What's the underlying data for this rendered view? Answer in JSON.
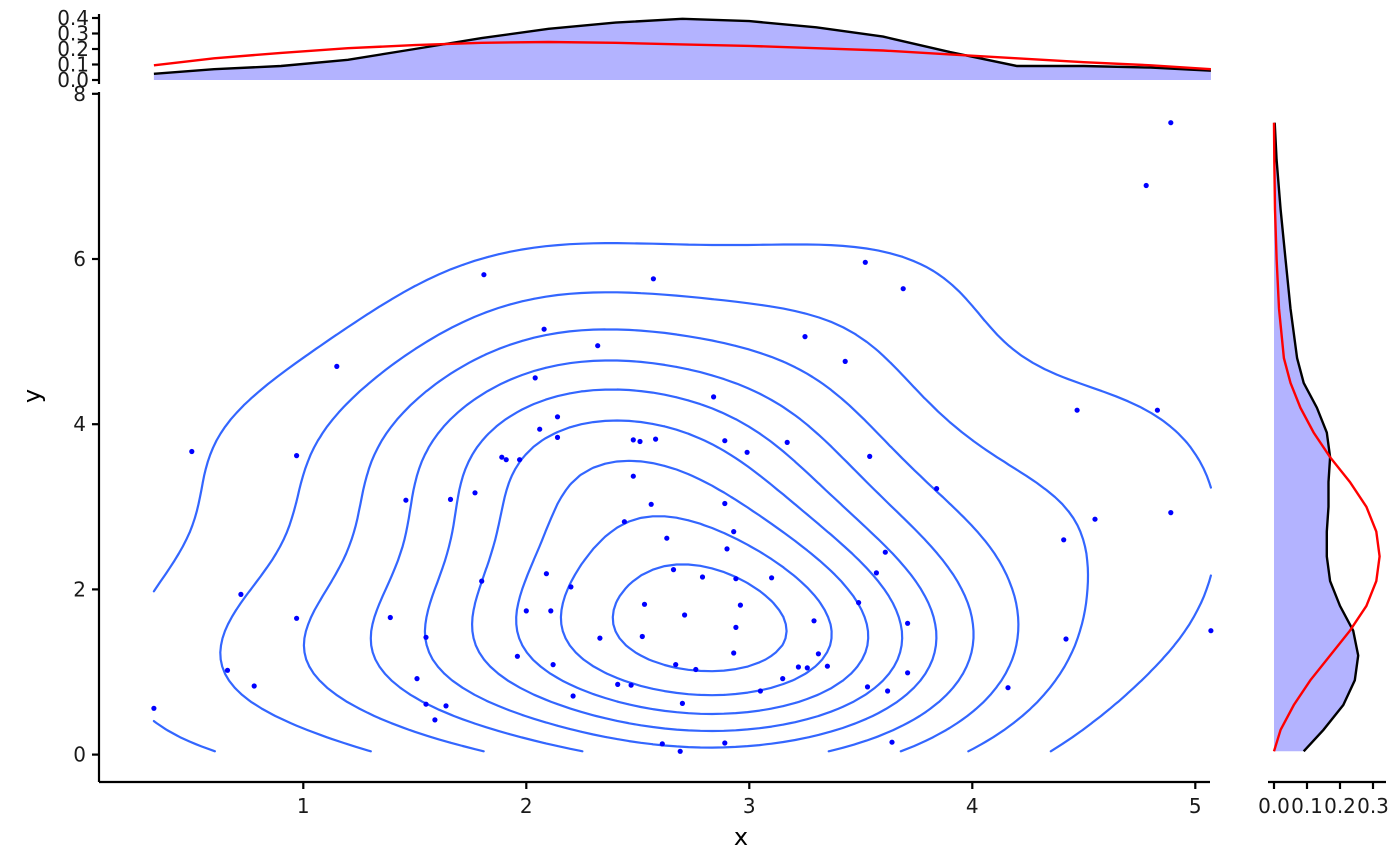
{
  "chart_data": [
    {
      "type": "scatter",
      "panel": "main",
      "title": "",
      "xlabel": "x",
      "ylabel": "y",
      "xlim": [
        0.0,
        5.2
      ],
      "ylim": [
        -0.35,
        8.0
      ],
      "xticks": [
        1,
        2,
        3,
        4,
        5
      ],
      "yticks": [
        0,
        2,
        4,
        6,
        8
      ],
      "grid": false,
      "legend": "none",
      "colors": {
        "points": "#0000ff",
        "contours": "#3366ff"
      },
      "points": [
        [
          0.33,
          0.56
        ],
        [
          0.5,
          3.67
        ],
        [
          0.66,
          1.02
        ],
        [
          0.72,
          1.94
        ],
        [
          0.78,
          0.83
        ],
        [
          0.97,
          3.62
        ],
        [
          0.97,
          1.65
        ],
        [
          1.15,
          4.7
        ],
        [
          1.39,
          1.66
        ],
        [
          1.46,
          3.08
        ],
        [
          1.51,
          0.92
        ],
        [
          1.55,
          1.42
        ],
        [
          1.55,
          0.61
        ],
        [
          1.59,
          0.42
        ],
        [
          1.64,
          0.59
        ],
        [
          1.66,
          3.09
        ],
        [
          1.77,
          3.17
        ],
        [
          1.8,
          2.1
        ],
        [
          1.81,
          5.81
        ],
        [
          1.89,
          3.6
        ],
        [
          1.91,
          3.57
        ],
        [
          1.96,
          1.19
        ],
        [
          1.97,
          3.57
        ],
        [
          2.0,
          1.74
        ],
        [
          2.04,
          4.56
        ],
        [
          2.06,
          3.94
        ],
        [
          2.08,
          5.15
        ],
        [
          2.09,
          2.19
        ],
        [
          2.11,
          1.74
        ],
        [
          2.12,
          1.09
        ],
        [
          2.14,
          4.09
        ],
        [
          2.14,
          3.84
        ],
        [
          2.2,
          2.03
        ],
        [
          2.21,
          0.71
        ],
        [
          2.32,
          4.95
        ],
        [
          2.33,
          1.41
        ],
        [
          2.41,
          0.85
        ],
        [
          2.44,
          2.82
        ],
        [
          2.47,
          0.84
        ],
        [
          2.48,
          3.37
        ],
        [
          2.48,
          3.81
        ],
        [
          2.51,
          3.79
        ],
        [
          2.52,
          1.43
        ],
        [
          2.53,
          1.82
        ],
        [
          2.56,
          3.03
        ],
        [
          2.57,
          5.76
        ],
        [
          2.58,
          3.82
        ],
        [
          2.61,
          0.13
        ],
        [
          2.63,
          2.62
        ],
        [
          2.66,
          2.24
        ],
        [
          2.67,
          1.09
        ],
        [
          2.69,
          0.04
        ],
        [
          2.7,
          0.62
        ],
        [
          2.71,
          1.69
        ],
        [
          2.76,
          1.03
        ],
        [
          2.79,
          2.15
        ],
        [
          2.84,
          4.33
        ],
        [
          2.89,
          3.8
        ],
        [
          2.89,
          3.04
        ],
        [
          2.89,
          0.14
        ],
        [
          2.9,
          2.49
        ],
        [
          2.93,
          2.7
        ],
        [
          2.93,
          1.23
        ],
        [
          2.94,
          2.13
        ],
        [
          2.94,
          1.54
        ],
        [
          2.96,
          1.81
        ],
        [
          2.99,
          3.66
        ],
        [
          3.05,
          0.77
        ],
        [
          3.1,
          2.14
        ],
        [
          3.15,
          0.92
        ],
        [
          3.17,
          3.78
        ],
        [
          3.22,
          1.06
        ],
        [
          3.25,
          5.06
        ],
        [
          3.26,
          1.05
        ],
        [
          3.29,
          1.62
        ],
        [
          3.31,
          1.22
        ],
        [
          3.35,
          1.07
        ],
        [
          3.43,
          4.76
        ],
        [
          3.49,
          1.84
        ],
        [
          3.52,
          5.96
        ],
        [
          3.53,
          0.82
        ],
        [
          3.54,
          3.61
        ],
        [
          3.57,
          2.2
        ],
        [
          3.61,
          2.45
        ],
        [
          3.62,
          0.77
        ],
        [
          3.64,
          0.15
        ],
        [
          3.69,
          5.64
        ],
        [
          3.71,
          1.59
        ],
        [
          3.71,
          0.99
        ],
        [
          3.84,
          3.22
        ],
        [
          4.16,
          0.81
        ],
        [
          4.41,
          2.6
        ],
        [
          4.42,
          1.4
        ],
        [
          4.47,
          4.17
        ],
        [
          4.55,
          2.85
        ],
        [
          4.78,
          6.89
        ],
        [
          4.83,
          4.17
        ],
        [
          4.89,
          7.65
        ],
        [
          4.89,
          2.93
        ],
        [
          5.07,
          1.5
        ]
      ]
    },
    {
      "type": "area",
      "panel": "top-marginal",
      "title": "",
      "ylim": [
        0.0,
        0.4
      ],
      "yticks": [
        "0.4",
        "0.3",
        "0.2",
        "0.1",
        "0.0"
      ],
      "colors": {
        "fill": "#b3b3ff",
        "density": "#000000",
        "normal_fit": "#ff0000"
      },
      "x": [
        0.33,
        0.6,
        0.9,
        1.2,
        1.5,
        1.8,
        2.1,
        2.4,
        2.7,
        3.0,
        3.3,
        3.6,
        3.9,
        4.2,
        4.5,
        4.8,
        5.07
      ],
      "series": [
        {
          "values": [
            0.04,
            0.07,
            0.09,
            0.13,
            0.2,
            0.27,
            0.33,
            0.37,
            0.395,
            0.38,
            0.34,
            0.28,
            0.18,
            0.09,
            0.09,
            0.08,
            0.06
          ]
        },
        {
          "values": [
            0.095,
            0.14,
            0.175,
            0.205,
            0.225,
            0.24,
            0.245,
            0.24,
            0.23,
            0.22,
            0.205,
            0.19,
            0.165,
            0.14,
            0.115,
            0.095,
            0.07
          ]
        }
      ]
    },
    {
      "type": "area",
      "panel": "right-marginal",
      "title": "",
      "xlim": [
        0.0,
        0.35
      ],
      "xticks": [
        "0.0",
        "0.1",
        "0.2",
        "0.3"
      ],
      "colors": {
        "fill": "#b3b3ff",
        "density": "#000000",
        "normal_fit": "#ff0000"
      },
      "y": [
        0.04,
        0.3,
        0.6,
        0.9,
        1.2,
        1.5,
        1.8,
        2.1,
        2.4,
        2.7,
        3.0,
        3.3,
        3.6,
        3.9,
        4.2,
        4.5,
        4.8,
        5.4,
        6.0,
        6.6,
        7.2,
        7.65
      ],
      "series": [
        {
          "values": [
            0.09,
            0.15,
            0.21,
            0.245,
            0.255,
            0.24,
            0.2,
            0.17,
            0.16,
            0.16,
            0.165,
            0.165,
            0.17,
            0.16,
            0.13,
            0.09,
            0.07,
            0.05,
            0.035,
            0.02,
            0.008,
            0.002
          ]
        },
        {
          "values": [
            0.0,
            0.02,
            0.06,
            0.11,
            0.17,
            0.23,
            0.28,
            0.31,
            0.32,
            0.31,
            0.28,
            0.23,
            0.17,
            0.12,
            0.08,
            0.05,
            0.03,
            0.015,
            0.008,
            0.003,
            0.001,
            0.0
          ]
        }
      ]
    }
  ]
}
